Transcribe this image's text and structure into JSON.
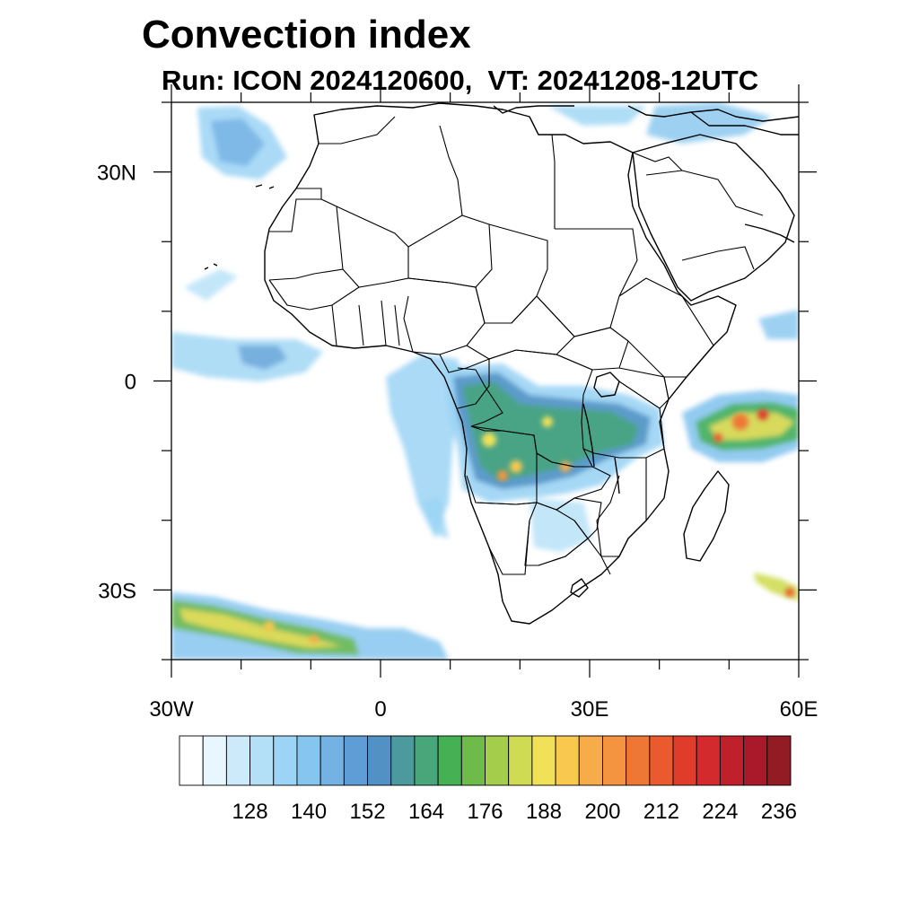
{
  "title": "Convection index",
  "subtitle": "Run: ICON 2024120600,  VT: 20241208-12UTC",
  "map": {
    "lon_range": [
      -30,
      60
    ],
    "lat_range": [
      -40,
      40
    ],
    "lon_ticks": [
      {
        "value": -30,
        "label": "30W"
      },
      {
        "value": 0,
        "label": "0"
      },
      {
        "value": 30,
        "label": "30E"
      },
      {
        "value": 60,
        "label": "60E"
      }
    ],
    "lat_ticks": [
      {
        "value": 30,
        "label": "30N"
      },
      {
        "value": 0,
        "label": "0"
      },
      {
        "value": -30,
        "label": "30S"
      }
    ],
    "minor_lon_step": 10,
    "minor_lat_step": 10
  },
  "colorbar": {
    "colors": [
      "#ffffff",
      "#e8f6fd",
      "#cdeafa",
      "#b4e0f7",
      "#9bd4f4",
      "#86c5ee",
      "#74b2e3",
      "#5f9dd6",
      "#5191c4",
      "#4c9a9d",
      "#47a67a",
      "#46b154",
      "#6eba4a",
      "#a4cd4c",
      "#cfdc53",
      "#f0e159",
      "#f8c84f",
      "#f6ac48",
      "#f49440",
      "#ef7735",
      "#ea5a2e",
      "#e03c2b",
      "#d22a2d",
      "#c01f2c",
      "#a9192a",
      "#921b24"
    ],
    "labels": [
      "128",
      "140",
      "152",
      "164",
      "176",
      "188",
      "200",
      "212",
      "224",
      "236"
    ]
  }
}
